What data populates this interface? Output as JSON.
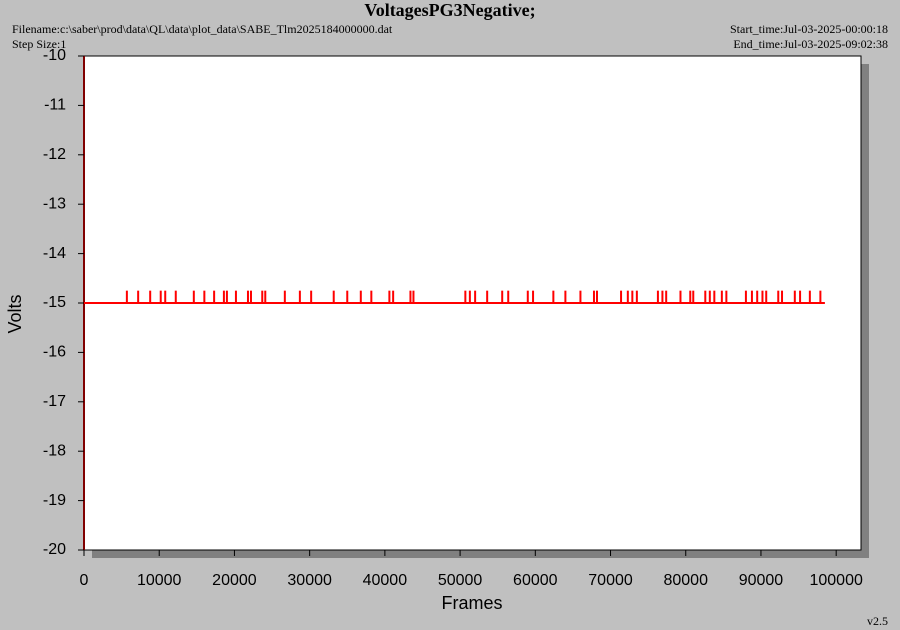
{
  "chart_data": {
    "type": "spikes",
    "title": "VoltagesPG3Negative;",
    "filename": "Filename:c:\\saber\\prod\\data\\QL\\data\\plot_data\\SABE_Tlm2025184000000.dat",
    "step_size": "Step Size:1",
    "start_time": "Start_time:Jul-03-2025-00:00:18",
    "end_time": "End_time:Jul-03-2025-09:02:38",
    "version": "v2.5",
    "x_label": "Frames",
    "y_label": "Volts",
    "xlim": [
      0,
      103300
    ],
    "ylim": [
      -20,
      -10
    ],
    "xticks": [
      0,
      10000,
      20000,
      30000,
      40000,
      50000,
      60000,
      70000,
      80000,
      90000,
      100000
    ],
    "yticks": [
      -20,
      -19,
      -18,
      -17,
      -16,
      -15,
      -14,
      -13,
      -12,
      -11,
      -10
    ],
    "color": "#ff0000",
    "baseline": {
      "x": [
        0,
        98500
      ],
      "values": [
        -15,
        -15
      ]
    },
    "spikes": {
      "x": [
        5700,
        7200,
        8800,
        10200,
        10800,
        12200,
        14600,
        16000,
        17300,
        18600,
        19000,
        20200,
        21800,
        22200,
        23700,
        24100,
        26700,
        28700,
        30200,
        33200,
        35000,
        36800,
        38200,
        40600,
        41100,
        43400,
        43800,
        50700,
        51300,
        52000,
        53600,
        55600,
        56400,
        59000,
        59700,
        62400,
        64000,
        66000,
        67800,
        68200,
        71400,
        72300,
        72900,
        73500,
        76300,
        76900,
        77400,
        79300,
        80600,
        81000,
        82600,
        83200,
        83800,
        84800,
        85400,
        88000,
        88800,
        89500,
        90200,
        90700,
        92300,
        92800,
        94500,
        95200,
        96500,
        97900
      ],
      "values": [
        -14.75,
        -14.75,
        -14.75,
        -14.75,
        -14.75,
        -14.75,
        -14.75,
        -14.75,
        -14.75,
        -14.75,
        -14.75,
        -14.75,
        -14.75,
        -14.75,
        -14.75,
        -14.75,
        -14.75,
        -14.75,
        -14.75,
        -14.75,
        -14.75,
        -14.75,
        -14.75,
        -14.75,
        -14.75,
        -14.75,
        -14.75,
        -14.75,
        -14.75,
        -14.75,
        -14.75,
        -14.75,
        -14.75,
        -14.75,
        -14.75,
        -14.75,
        -14.75,
        -14.75,
        -14.75,
        -14.75,
        -14.75,
        -14.75,
        -14.75,
        -14.75,
        -14.75,
        -14.75,
        -14.75,
        -14.75,
        -14.75,
        -14.75,
        -14.75,
        -14.75,
        -14.75,
        -14.75,
        -14.75,
        -14.75,
        -14.75,
        -14.75,
        -14.75,
        -14.75,
        -14.75,
        -14.75,
        -14.75,
        -14.75,
        -14.75,
        -14.75
      ]
    }
  }
}
